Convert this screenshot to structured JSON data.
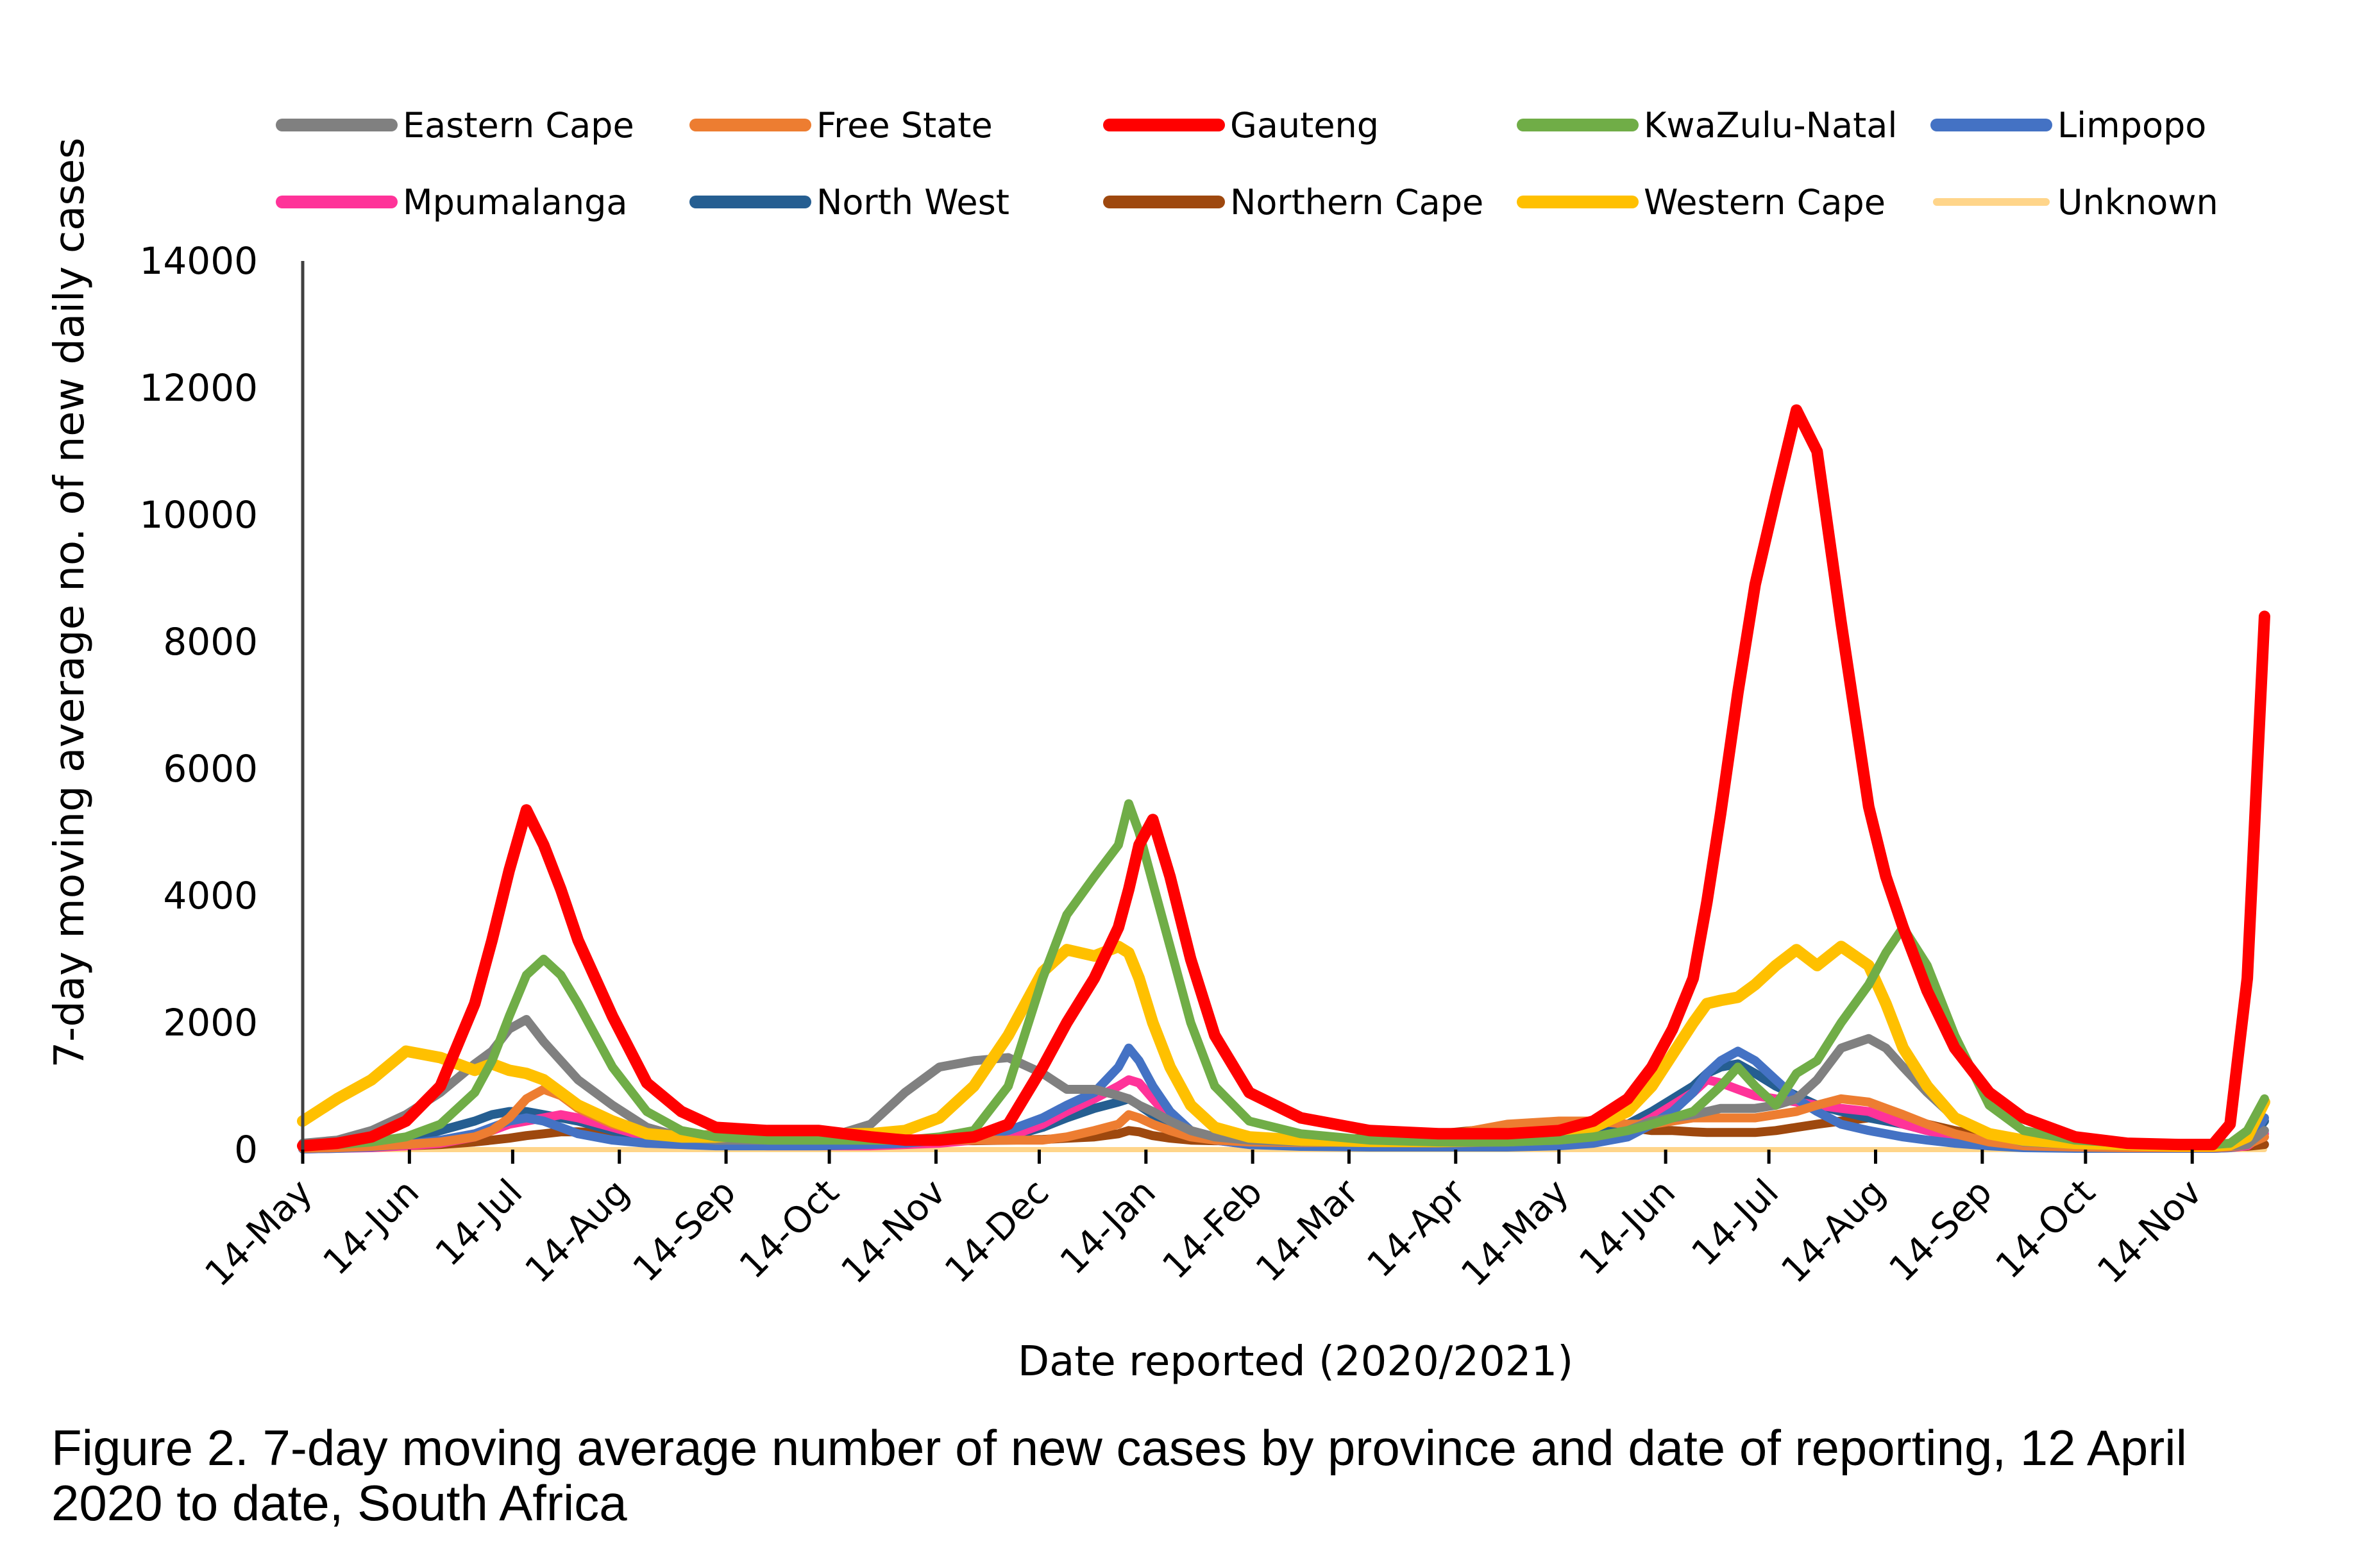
{
  "chart_data": {
    "type": "line",
    "title": "",
    "xlabel": "Date reported (2020/2021)",
    "ylabel": "7-day moving average no. of new daily cases",
    "x_unit": "days since 14-May-2020",
    "xlim": [
      0,
      573
    ],
    "ylim": [
      0,
      14000
    ],
    "grid": false,
    "legend_position": "top",
    "yticks": [
      0,
      2000,
      4000,
      6000,
      8000,
      10000,
      12000,
      14000
    ],
    "yticks_labels": [
      "0",
      "2000",
      "4000",
      "6000",
      "8000",
      "10000",
      "12000",
      "14000"
    ],
    "xticks": [
      0,
      31,
      61,
      92,
      123,
      153,
      184,
      214,
      245,
      276,
      304,
      335,
      365,
      396,
      426,
      457,
      488,
      518,
      549
    ],
    "xticks_labels": [
      "14-May",
      "14-Jun",
      "14-Jul",
      "14-Aug",
      "14-Sep",
      "14-Oct",
      "14-Nov",
      "14-Dec",
      "14-Jan",
      "14-Feb",
      "14-Mar",
      "14-Apr",
      "14-May",
      "14-Jun",
      "14-Jul",
      "14-Aug",
      "14-Sep",
      "14-Oct",
      "14-Nov"
    ],
    "x": [
      0,
      10,
      20,
      30,
      40,
      50,
      55,
      60,
      65,
      70,
      75,
      80,
      90,
      100,
      110,
      120,
      135,
      150,
      165,
      175,
      185,
      195,
      205,
      215,
      222,
      230,
      237,
      240,
      243,
      247,
      252,
      258,
      265,
      275,
      290,
      310,
      330,
      350,
      365,
      375,
      385,
      392,
      398,
      404,
      408,
      412,
      417,
      422,
      428,
      434,
      440,
      447,
      455,
      460,
      465,
      472,
      480,
      490,
      500,
      515,
      530,
      545,
      555,
      560,
      565,
      570
    ],
    "series": [
      {
        "name": "Eastern Cape",
        "color": "#808080",
        "width": 14,
        "values": [
          100,
          150,
          300,
          550,
          900,
          1350,
          1550,
          1900,
          2050,
          1700,
          1400,
          1100,
          700,
          350,
          200,
          150,
          150,
          150,
          400,
          900,
          1300,
          1400,
          1450,
          1200,
          950,
          950,
          850,
          800,
          700,
          600,
          450,
          300,
          200,
          150,
          120,
          110,
          100,
          120,
          150,
          200,
          300,
          450,
          500,
          550,
          600,
          650,
          650,
          650,
          700,
          800,
          1100,
          1600,
          1750,
          1600,
          1300,
          900,
          500,
          250,
          120,
          80,
          60,
          60,
          60,
          60,
          80,
          300
        ]
      },
      {
        "name": "Free State",
        "color": "#ED7D31",
        "width": 14,
        "values": [
          20,
          30,
          50,
          80,
          120,
          200,
          300,
          500,
          800,
          950,
          850,
          650,
          400,
          250,
          200,
          250,
          300,
          300,
          200,
          150,
          150,
          150,
          150,
          150,
          200,
          300,
          400,
          550,
          500,
          400,
          300,
          200,
          150,
          120,
          110,
          120,
          200,
          400,
          450,
          450,
          400,
          400,
          450,
          500,
          500,
          500,
          500,
          500,
          550,
          600,
          700,
          800,
          750,
          650,
          550,
          400,
          250,
          120,
          60,
          40,
          30,
          30,
          30,
          40,
          80,
          200
        ]
      },
      {
        "name": "Gauteng",
        "color": "#FF0000",
        "width": 18,
        "values": [
          60,
          100,
          200,
          450,
          1000,
          2300,
          3300,
          4400,
          5350,
          4800,
          4100,
          3300,
          2100,
          1050,
          600,
          350,
          300,
          300,
          200,
          150,
          150,
          200,
          400,
          1300,
          2000,
          2700,
          3500,
          4100,
          4800,
          5200,
          4300,
          3000,
          1800,
          900,
          500,
          300,
          250,
          250,
          300,
          450,
          800,
          1300,
          1900,
          2700,
          3900,
          5300,
          7200,
          8900,
          10300,
          11650,
          11000,
          8300,
          5400,
          4300,
          3500,
          2500,
          1600,
          900,
          500,
          200,
          100,
          80,
          80,
          400,
          2700,
          8400
        ]
      },
      {
        "name": "KwaZulu-Natal",
        "color": "#70AD47",
        "width": 14,
        "values": [
          50,
          80,
          120,
          200,
          400,
          900,
          1400,
          2100,
          2750,
          3000,
          2750,
          2300,
          1300,
          600,
          300,
          200,
          150,
          150,
          150,
          150,
          200,
          300,
          1000,
          2700,
          3700,
          4300,
          4800,
          5450,
          5000,
          4200,
          3200,
          2000,
          1000,
          450,
          250,
          150,
          120,
          120,
          150,
          200,
          300,
          400,
          500,
          600,
          800,
          1000,
          1300,
          1000,
          700,
          1200,
          1400,
          2000,
          2600,
          3100,
          3500,
          2900,
          1800,
          700,
          300,
          150,
          100,
          80,
          80,
          100,
          300,
          800
        ]
      },
      {
        "name": "Limpopo",
        "color": "#4472C4",
        "width": 14,
        "values": [
          10,
          20,
          40,
          80,
          150,
          250,
          350,
          450,
          500,
          450,
          350,
          250,
          150,
          100,
          80,
          60,
          60,
          60,
          80,
          100,
          150,
          200,
          300,
          500,
          700,
          900,
          1300,
          1600,
          1400,
          1000,
          600,
          300,
          150,
          80,
          50,
          40,
          40,
          40,
          60,
          100,
          200,
          400,
          600,
          900,
          1200,
          1400,
          1550,
          1400,
          1100,
          800,
          600,
          400,
          300,
          250,
          200,
          150,
          100,
          60,
          30,
          20,
          20,
          20,
          20,
          30,
          80,
          500
        ]
      },
      {
        "name": "Mpumalanga",
        "color": "#FF3399",
        "width": 14,
        "values": [
          10,
          20,
          30,
          60,
          100,
          200,
          300,
          400,
          450,
          500,
          550,
          500,
          350,
          200,
          120,
          80,
          60,
          60,
          60,
          80,
          100,
          150,
          200,
          400,
          600,
          800,
          1000,
          1100,
          1050,
          800,
          500,
          300,
          150,
          80,
          60,
          50,
          50,
          60,
          80,
          150,
          300,
          500,
          700,
          900,
          1100,
          1050,
          950,
          850,
          800,
          750,
          700,
          650,
          600,
          500,
          400,
          300,
          200,
          100,
          50,
          30,
          20,
          20,
          20,
          30,
          60,
          250
        ]
      },
      {
        "name": "North West",
        "color": "#255E91",
        "width": 14,
        "values": [
          20,
          40,
          80,
          150,
          300,
          450,
          550,
          600,
          600,
          550,
          500,
          450,
          300,
          180,
          120,
          100,
          100,
          100,
          100,
          100,
          120,
          150,
          200,
          350,
          500,
          650,
          750,
          800,
          700,
          550,
          400,
          250,
          150,
          100,
          80,
          80,
          80,
          100,
          150,
          250,
          400,
          600,
          800,
          1000,
          1200,
          1300,
          1350,
          1200,
          1000,
          850,
          700,
          600,
          500,
          450,
          400,
          300,
          200,
          100,
          60,
          40,
          30,
          30,
          30,
          40,
          100,
          450
        ]
      },
      {
        "name": "Northern Cape",
        "color": "#9E480E",
        "width": 14,
        "values": [
          20,
          30,
          40,
          60,
          80,
          120,
          150,
          180,
          220,
          250,
          280,
          280,
          250,
          200,
          180,
          150,
          150,
          150,
          140,
          140,
          140,
          140,
          150,
          160,
          180,
          200,
          250,
          300,
          280,
          220,
          180,
          150,
          140,
          140,
          150,
          180,
          250,
          350,
          420,
          400,
          350,
          300,
          300,
          280,
          270,
          270,
          270,
          270,
          300,
          350,
          400,
          450,
          500,
          500,
          480,
          400,
          300,
          200,
          150,
          100,
          70,
          60,
          60,
          50,
          50,
          80
        ]
      },
      {
        "name": "Western Cape",
        "color": "#FFC000",
        "width": 18,
        "values": [
          450,
          800,
          1100,
          1550,
          1450,
          1250,
          1350,
          1250,
          1200,
          1100,
          900,
          700,
          450,
          250,
          200,
          200,
          250,
          250,
          250,
          300,
          500,
          1000,
          1800,
          2800,
          3150,
          3050,
          3200,
          3100,
          2700,
          2000,
          1300,
          700,
          350,
          200,
          150,
          130,
          130,
          150,
          200,
          350,
          600,
          1000,
          1500,
          2000,
          2300,
          2350,
          2400,
          2600,
          2900,
          3150,
          2900,
          3200,
          2900,
          2300,
          1600,
          1000,
          500,
          250,
          150,
          100,
          80,
          60,
          60,
          80,
          200,
          750
        ]
      },
      {
        "name": "Unknown",
        "color": "#FFD58A",
        "width": 8,
        "values": [
          0,
          0,
          0,
          0,
          0,
          0,
          0,
          0,
          0,
          0,
          0,
          0,
          0,
          0,
          0,
          0,
          0,
          0,
          0,
          0,
          0,
          0,
          0,
          0,
          0,
          0,
          0,
          0,
          0,
          0,
          0,
          0,
          0,
          0,
          0,
          0,
          0,
          0,
          0,
          0,
          0,
          0,
          0,
          0,
          0,
          0,
          0,
          0,
          0,
          0,
          0,
          0,
          0,
          0,
          0,
          0,
          0,
          0,
          0,
          0,
          0,
          0,
          0,
          0,
          0,
          0
        ]
      }
    ]
  },
  "caption": {
    "line1": "Figure 2. 7-day moving average number of new cases by province and date of reporting, 12 April",
    "line2": "2020 to date, South Africa"
  }
}
